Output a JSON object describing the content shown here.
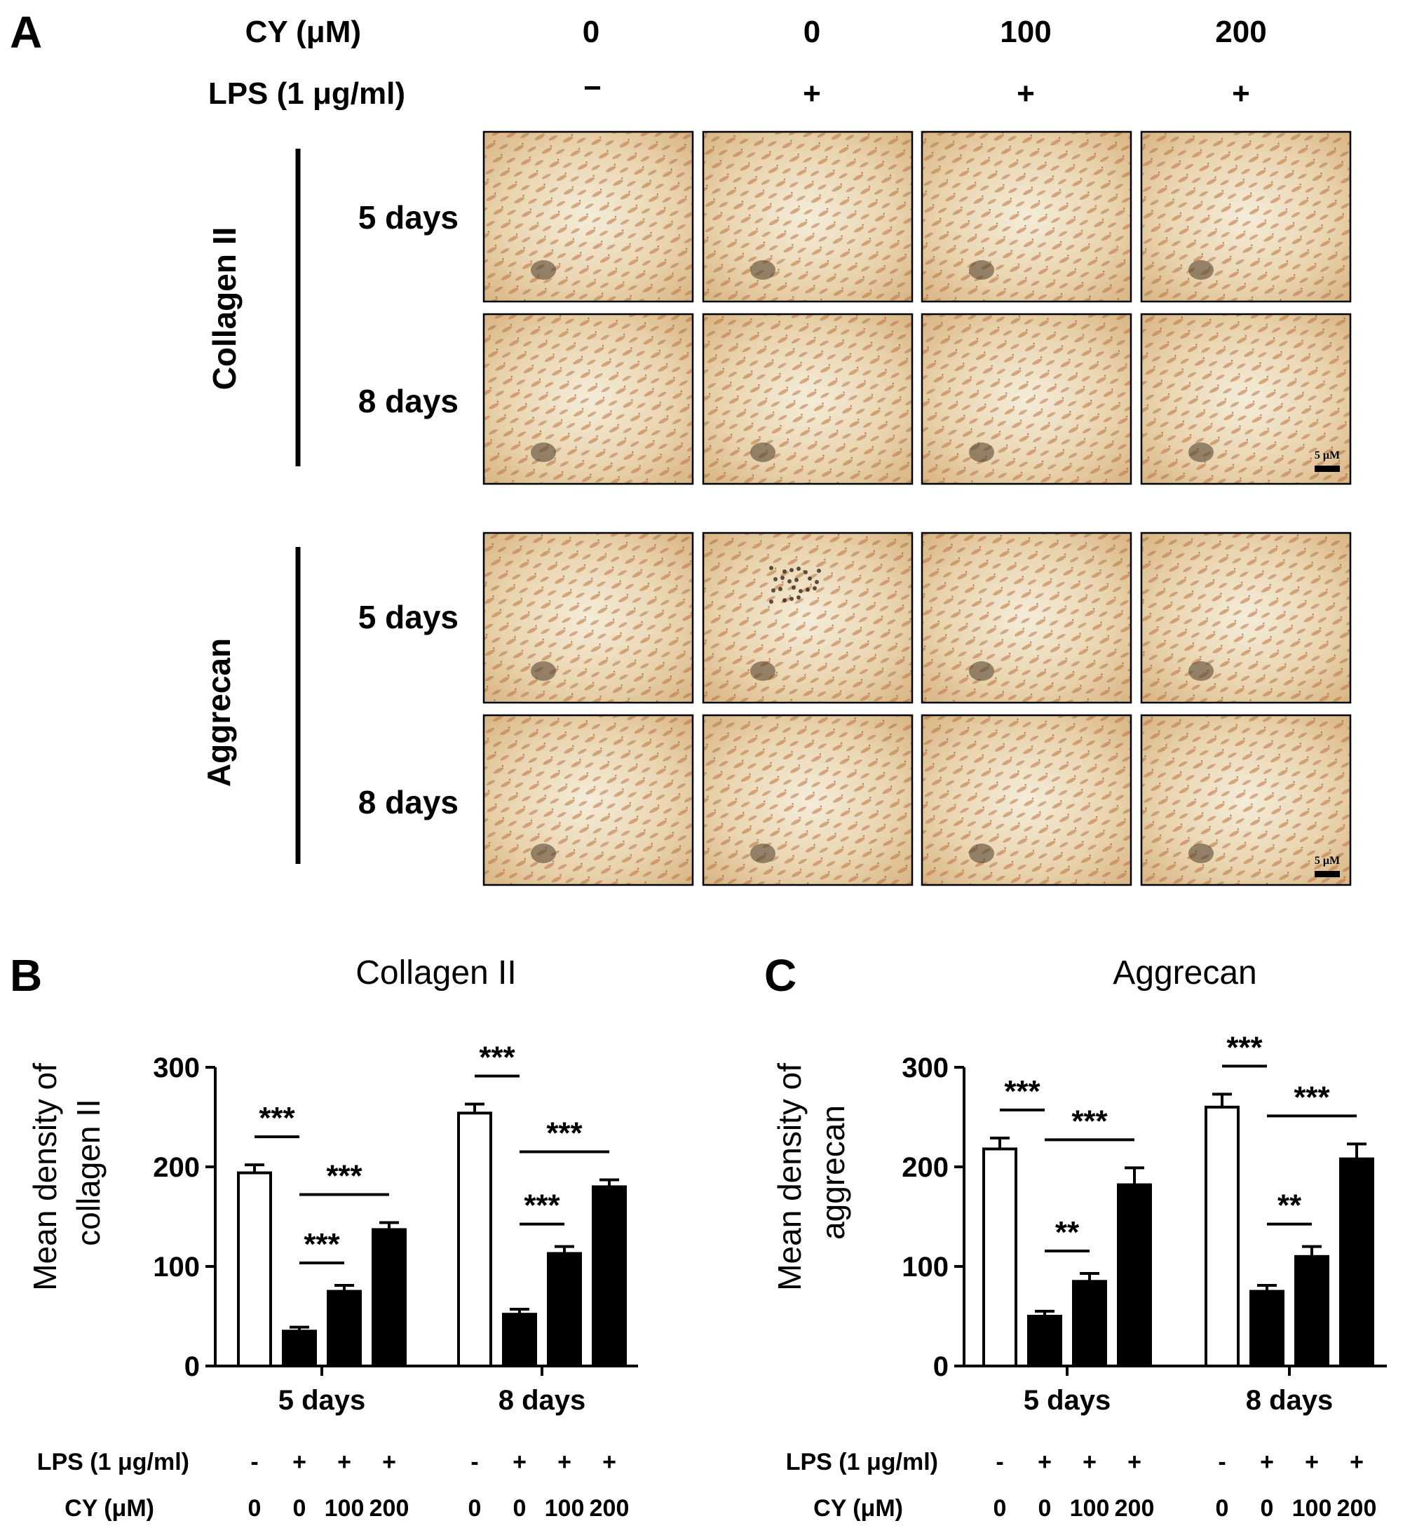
{
  "panel_a": {
    "letter": "A",
    "header_rows": [
      {
        "label": "CY (μM)",
        "values": [
          "0",
          "0",
          "100",
          "200"
        ]
      },
      {
        "label": "LPS (1 μg/ml)",
        "values": [
          "−",
          "+",
          "+",
          "+"
        ]
      }
    ],
    "groups": [
      {
        "name": "Collagen II",
        "rows": [
          "5 days",
          "8 days"
        ],
        "scale_bar": "5 μM"
      },
      {
        "name": "Aggrecan",
        "rows": [
          "5 days",
          "8 days"
        ],
        "scale_bar": "5 μM"
      }
    ]
  },
  "chart_data": [
    {
      "panel": "B",
      "type": "bar",
      "title": "Collagen II",
      "ylabel": "Mean density of collagen II",
      "ylim": [
        0,
        300
      ],
      "yticks": [
        0,
        100,
        200,
        300
      ],
      "categories": [
        "5 days",
        "8 days"
      ],
      "bars_per_category": 4,
      "values": [
        [
          194,
          35,
          75,
          137
        ],
        [
          254,
          52,
          113,
          180
        ]
      ],
      "errors": [
        [
          8,
          4,
          6,
          7
        ],
        [
          9,
          5,
          7,
          7
        ]
      ],
      "fills": [
        "white",
        "black",
        "black",
        "black"
      ],
      "significance": [
        {
          "category": 0,
          "from": 0,
          "to": 1,
          "label": "***"
        },
        {
          "category": 0,
          "from": 1,
          "to": 2,
          "label": "***"
        },
        {
          "category": 0,
          "from": 1,
          "to": 3,
          "label": "***"
        },
        {
          "category": 1,
          "from": 0,
          "to": 1,
          "label": "***"
        },
        {
          "category": 1,
          "from": 1,
          "to": 2,
          "label": "***"
        },
        {
          "category": 1,
          "from": 1,
          "to": 3,
          "label": "***"
        }
      ],
      "conditions": {
        "LPS": {
          "label": "LPS (1 μg/ml)",
          "values": [
            "-",
            "+",
            "+",
            "+",
            "-",
            "+",
            "+",
            "+"
          ]
        },
        "CY": {
          "label": "CY (μM)",
          "values": [
            "0",
            "0",
            "100",
            "200",
            "0",
            "0",
            "100",
            "200"
          ]
        }
      },
      "grid": false
    },
    {
      "panel": "C",
      "type": "bar",
      "title": "Aggrecan",
      "ylabel": "Mean density of aggrecan",
      "ylim": [
        0,
        300
      ],
      "yticks": [
        0,
        100,
        200,
        300
      ],
      "categories": [
        "5 days",
        "8 days"
      ],
      "bars_per_category": 4,
      "values": [
        [
          218,
          50,
          85,
          182
        ],
        [
          260,
          75,
          110,
          208
        ]
      ],
      "errors": [
        [
          11,
          5,
          8,
          17
        ],
        [
          13,
          6,
          10,
          15
        ]
      ],
      "fills": [
        "white",
        "black",
        "black",
        "black"
      ],
      "significance": [
        {
          "category": 0,
          "from": 0,
          "to": 1,
          "label": "***"
        },
        {
          "category": 0,
          "from": 1,
          "to": 2,
          "label": "**"
        },
        {
          "category": 0,
          "from": 1,
          "to": 3,
          "label": "***"
        },
        {
          "category": 1,
          "from": 0,
          "to": 1,
          "label": "***"
        },
        {
          "category": 1,
          "from": 1,
          "to": 2,
          "label": "**"
        },
        {
          "category": 1,
          "from": 1,
          "to": 3,
          "label": "***"
        }
      ],
      "conditions": {
        "LPS": {
          "label": "LPS (1 μg/ml)",
          "values": [
            "-",
            "+",
            "+",
            "+",
            "-",
            "+",
            "+",
            "+"
          ]
        },
        "CY": {
          "label": "CY (μM)",
          "values": [
            "0",
            "0",
            "100",
            "200",
            "0",
            "0",
            "100",
            "200"
          ]
        }
      },
      "grid": false
    }
  ]
}
